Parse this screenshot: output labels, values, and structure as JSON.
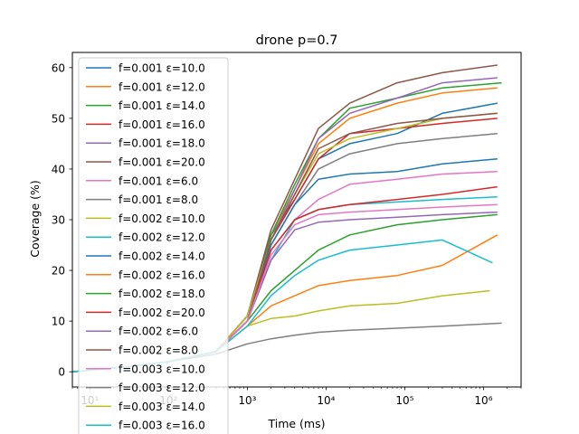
{
  "chart_data": {
    "type": "line",
    "title": "drone p=0.7",
    "xlabel": "Time (ms)",
    "ylabel": "Coverage (%)",
    "xscale": "log",
    "xlim": [
      6,
      3000000
    ],
    "ylim": [
      -3,
      63
    ],
    "grid": false,
    "legend_position": "upper-left",
    "x_ticks": [
      {
        "value": 10,
        "label": "10¹"
      },
      {
        "value": 100,
        "label": "10²"
      },
      {
        "value": 1000,
        "label": "10³"
      },
      {
        "value": 10000,
        "label": "10⁴"
      },
      {
        "value": 100000,
        "label": "10⁵"
      },
      {
        "value": 1000000,
        "label": "10⁶"
      }
    ],
    "y_ticks": [
      0,
      10,
      20,
      30,
      40,
      50,
      60
    ],
    "series": [
      {
        "name": "f=0.001 ε=10.0",
        "color": "#1f77b4",
        "x": [
          6,
          30,
          100,
          400,
          1000,
          2000,
          4000,
          8000,
          20000,
          80000,
          300000,
          1500000
        ],
        "y": [
          0,
          1,
          2,
          4,
          11,
          27,
          34,
          42,
          45,
          47,
          51,
          53
        ]
      },
      {
        "name": "f=0.001 ε=12.0",
        "color": "#ff7f0e",
        "x": [
          6,
          30,
          100,
          400,
          1000,
          2000,
          4000,
          8000,
          20000,
          80000,
          300000,
          1500000
        ],
        "y": [
          0,
          1,
          2,
          4,
          11,
          27,
          36,
          45,
          50,
          53,
          55,
          56
        ]
      },
      {
        "name": "f=0.001 ε=14.0",
        "color": "#2ca02c",
        "x": [
          6,
          30,
          100,
          400,
          1000,
          2000,
          4000,
          8000,
          20000,
          80000,
          300000,
          1700000
        ],
        "y": [
          0,
          1,
          2,
          4,
          11,
          27,
          37,
          46,
          52,
          54,
          56,
          57
        ]
      },
      {
        "name": "f=0.001 ε=16.0",
        "color": "#d62728",
        "x": [
          6,
          30,
          100,
          400,
          1000,
          2000,
          4000,
          8000,
          20000,
          80000,
          300000,
          1500000
        ],
        "y": [
          0,
          1,
          2,
          4,
          11,
          26,
          34,
          42,
          47,
          48,
          49,
          50
        ]
      },
      {
        "name": "f=0.001 ε=18.0",
        "color": "#9467bd",
        "x": [
          6,
          30,
          100,
          400,
          1000,
          2000,
          4000,
          8000,
          20000,
          80000,
          300000,
          1500000
        ],
        "y": [
          0,
          1,
          2,
          4,
          11,
          26,
          36,
          46,
          51,
          54,
          57,
          58
        ]
      },
      {
        "name": "f=0.001 ε=20.0",
        "color": "#8c564b",
        "x": [
          6,
          30,
          100,
          400,
          1000,
          2000,
          4000,
          8000,
          20000,
          80000,
          300000,
          1500000
        ],
        "y": [
          0,
          1,
          2,
          4,
          11,
          28,
          38,
          48,
          53,
          57,
          59,
          60.5
        ]
      },
      {
        "name": "f=0.001 ε=6.0",
        "color": "#e377c2",
        "x": [
          6,
          30,
          100,
          400,
          1000,
          2000,
          4000,
          8000,
          20000,
          80000,
          300000,
          1500000
        ],
        "y": [
          0,
          1,
          2,
          4,
          10,
          24,
          30,
          34,
          37,
          38,
          39,
          39.5
        ]
      },
      {
        "name": "f=0.001 ε=8.0",
        "color": "#7f7f7f",
        "x": [
          6,
          30,
          100,
          400,
          1000,
          2000,
          4000,
          8000,
          20000,
          80000,
          300000,
          1500000
        ],
        "y": [
          0,
          1,
          2,
          4,
          10,
          25,
          33,
          40,
          43,
          45,
          46,
          47
        ]
      },
      {
        "name": "f=0.002 ε=10.0",
        "color": "#bcbd22",
        "x": [
          6,
          30,
          100,
          400,
          1000,
          2000,
          4000,
          8000,
          20000,
          80000,
          300000,
          1500000
        ],
        "y": [
          0,
          1,
          2,
          4,
          11,
          26,
          35,
          43,
          46,
          48,
          50,
          51
        ]
      },
      {
        "name": "f=0.002 ε=12.0",
        "color": "#17becf",
        "x": [
          6,
          30,
          100,
          400,
          1000,
          2000,
          4000,
          8000,
          20000,
          80000,
          300000,
          1500000
        ],
        "y": [
          0,
          1,
          2,
          4,
          10,
          22,
          30,
          32,
          33,
          33.5,
          34,
          34.5
        ]
      },
      {
        "name": "f=0.002 ε=14.0",
        "color": "#1f77b4",
        "x": [
          6,
          30,
          100,
          400,
          1000,
          2000,
          4000,
          8000,
          20000,
          80000,
          300000,
          1500000
        ],
        "y": [
          0,
          1,
          2,
          4,
          10,
          25,
          33,
          38,
          39,
          39.5,
          41,
          42
        ]
      },
      {
        "name": "f=0.002 ε=16.0",
        "color": "#ff7f0e",
        "x": [
          6,
          30,
          100,
          400,
          1000,
          2000,
          4000,
          8000,
          20000,
          80000,
          300000,
          1500000
        ],
        "y": [
          0,
          1,
          2,
          4,
          9,
          13,
          15,
          17,
          18,
          19,
          21,
          27
        ]
      },
      {
        "name": "f=0.002 ε=18.0",
        "color": "#2ca02c",
        "x": [
          6,
          30,
          100,
          400,
          1000,
          2000,
          4000,
          8000,
          20000,
          80000,
          300000,
          1500000
        ],
        "y": [
          0,
          1,
          2,
          4,
          10,
          16,
          20,
          24,
          27,
          29,
          30,
          31
        ]
      },
      {
        "name": "f=0.002 ε=20.0",
        "color": "#d62728",
        "x": [
          6,
          30,
          100,
          400,
          1000,
          2000,
          4000,
          8000,
          20000,
          80000,
          300000,
          1500000
        ],
        "y": [
          0,
          1,
          2,
          4,
          10,
          24,
          30,
          32,
          33,
          34,
          35,
          36.5
        ]
      },
      {
        "name": "f=0.002 ε=6.0",
        "color": "#9467bd",
        "x": [
          6,
          30,
          100,
          400,
          1000,
          2000,
          4000,
          8000,
          20000,
          80000,
          300000,
          1500000
        ],
        "y": [
          0,
          1,
          2,
          4,
          10,
          22,
          28,
          29.5,
          30,
          30.5,
          31,
          31.5
        ]
      },
      {
        "name": "f=0.002 ε=8.0",
        "color": "#8c564b",
        "x": [
          6,
          30,
          100,
          400,
          1000,
          2000,
          4000,
          8000,
          20000,
          80000,
          300000,
          1500000
        ],
        "y": [
          0,
          1,
          2,
          4,
          10,
          26,
          35,
          44,
          47,
          49,
          50,
          51
        ]
      },
      {
        "name": "f=0.003 ε=10.0",
        "color": "#e377c2",
        "x": [
          6,
          30,
          100,
          400,
          1000,
          2000,
          4000,
          8000,
          20000,
          80000,
          300000,
          1500000
        ],
        "y": [
          0,
          1,
          2,
          4,
          10,
          23,
          29,
          31,
          31.5,
          32,
          32.5,
          33
        ]
      },
      {
        "name": "f=0.003 ε=12.0",
        "color": "#7f7f7f",
        "x": [
          6,
          30,
          100,
          400,
          1000,
          2000,
          4000,
          8000,
          20000,
          80000,
          300000,
          1700000
        ],
        "y": [
          0,
          1,
          2,
          3.5,
          5.5,
          6.5,
          7.2,
          7.8,
          8.2,
          8.6,
          9,
          9.6
        ]
      },
      {
        "name": "f=0.003 ε=14.0",
        "color": "#bcbd22",
        "x": [
          6,
          30,
          100,
          400,
          1000,
          2000,
          4000,
          8000,
          20000,
          80000,
          300000,
          1200000
        ],
        "y": [
          0,
          1,
          2,
          4,
          9,
          10.5,
          11,
          12,
          13,
          13.5,
          15,
          16
        ]
      },
      {
        "name": "f=0.003 ε=16.0",
        "color": "#17becf",
        "x": [
          6,
          30,
          100,
          400,
          1000,
          2000,
          4000,
          8000,
          20000,
          80000,
          300000,
          1300000
        ],
        "y": [
          0,
          1,
          2,
          4,
          9,
          15,
          19,
          22,
          24,
          25,
          26,
          21.5
        ]
      }
    ]
  }
}
